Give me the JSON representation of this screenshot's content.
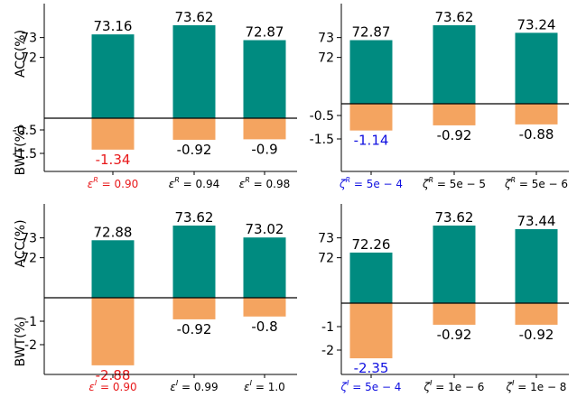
{
  "colors": {
    "acc_bar": "#008b80",
    "bwt_bar": "#f4a460",
    "highlight_red": "#e8191b",
    "highlight_blue": "#1010e0",
    "text": "#000000"
  },
  "chart_data": [
    {
      "type": "bar",
      "position": "top-left",
      "ylabel_top": "ACC(%)",
      "ylabel_bottom": "BWT(%)",
      "categories": [
        {
          "prefix": "ε",
          "sup": "R",
          "value": " = 0.90",
          "highlight": "red"
        },
        {
          "prefix": "ε",
          "sup": "R",
          "value": " = 0.94",
          "highlight": null
        },
        {
          "prefix": "ε",
          "sup": "R",
          "value": " = 0.98",
          "highlight": null
        }
      ],
      "acc": {
        "values": [
          73.16,
          73.62,
          72.87
        ],
        "labels": [
          "73.16",
          "73.62",
          "72.87"
        ],
        "ticks": [
          73,
          72
        ],
        "tick_labels": [
          "73",
          "72"
        ]
      },
      "bwt": {
        "values": [
          -1.34,
          -0.92,
          -0.9
        ],
        "labels": [
          "-1.34",
          "-0.92",
          "-0.9"
        ],
        "ticks": [
          -0.5,
          -1.5
        ],
        "tick_labels": [
          "-0.5",
          "-1.5"
        ]
      }
    },
    {
      "type": "bar",
      "position": "top-right",
      "ylabel_top": "",
      "ylabel_bottom": "",
      "categories": [
        {
          "prefix": "ζ",
          "sup": "R",
          "value": " = 5e − 4",
          "highlight": "blue"
        },
        {
          "prefix": "ζ",
          "sup": "R",
          "value": " = 5e − 5",
          "highlight": null
        },
        {
          "prefix": "ζ",
          "sup": "R",
          "value": " = 5e − 6",
          "highlight": null
        }
      ],
      "acc": {
        "values": [
          72.87,
          73.62,
          73.24
        ],
        "labels": [
          "72.87",
          "73.62",
          "73.24"
        ],
        "ticks": [
          73,
          72
        ],
        "tick_labels": [
          "73",
          "72"
        ]
      },
      "bwt": {
        "values": [
          -1.14,
          -0.92,
          -0.88
        ],
        "labels": [
          "-1.14",
          "-0.92",
          "-0.88"
        ],
        "ticks": [
          -0.5,
          -1.5
        ],
        "tick_labels": [
          "-0.5",
          "-1.5"
        ]
      }
    },
    {
      "type": "bar",
      "position": "bottom-left",
      "ylabel_top": "ACC(%)",
      "ylabel_bottom": "BWT(%)",
      "categories": [
        {
          "prefix": "ε",
          "sup": "I",
          "value": " = 0.90",
          "highlight": "red"
        },
        {
          "prefix": "ε",
          "sup": "I",
          "value": " = 0.99",
          "highlight": null
        },
        {
          "prefix": "ε",
          "sup": "I",
          "value": " = 1.0",
          "highlight": null
        }
      ],
      "acc": {
        "values": [
          72.88,
          73.62,
          73.02
        ],
        "labels": [
          "72.88",
          "73.62",
          "73.02"
        ],
        "ticks": [
          73,
          72
        ],
        "tick_labels": [
          "73",
          "72"
        ]
      },
      "bwt": {
        "values": [
          -2.88,
          -0.92,
          -0.8
        ],
        "labels": [
          "-2.88",
          "-0.92",
          "-0.8"
        ],
        "ticks": [
          -1,
          -2
        ],
        "tick_labels": [
          "-1",
          "-2"
        ]
      }
    },
    {
      "type": "bar",
      "position": "bottom-right",
      "ylabel_top": "",
      "ylabel_bottom": "",
      "categories": [
        {
          "prefix": "ζ",
          "sup": "I",
          "value": " = 5e − 4",
          "highlight": "blue"
        },
        {
          "prefix": "ζ",
          "sup": "I",
          "value": " = 1e − 6",
          "highlight": null
        },
        {
          "prefix": "ζ",
          "sup": "I",
          "value": " = 1e − 8",
          "highlight": null
        }
      ],
      "acc": {
        "values": [
          72.26,
          73.62,
          73.44
        ],
        "labels": [
          "72.26",
          "73.62",
          "73.44"
        ],
        "ticks": [
          73,
          72
        ],
        "tick_labels": [
          "73",
          "72"
        ]
      },
      "bwt": {
        "values": [
          -2.35,
          -0.92,
          -0.92
        ],
        "labels": [
          "-2.35",
          "-0.92",
          "-0.92"
        ],
        "ticks": [
          -1,
          -2
        ],
        "tick_labels": [
          "-1",
          "-2"
        ]
      }
    }
  ]
}
